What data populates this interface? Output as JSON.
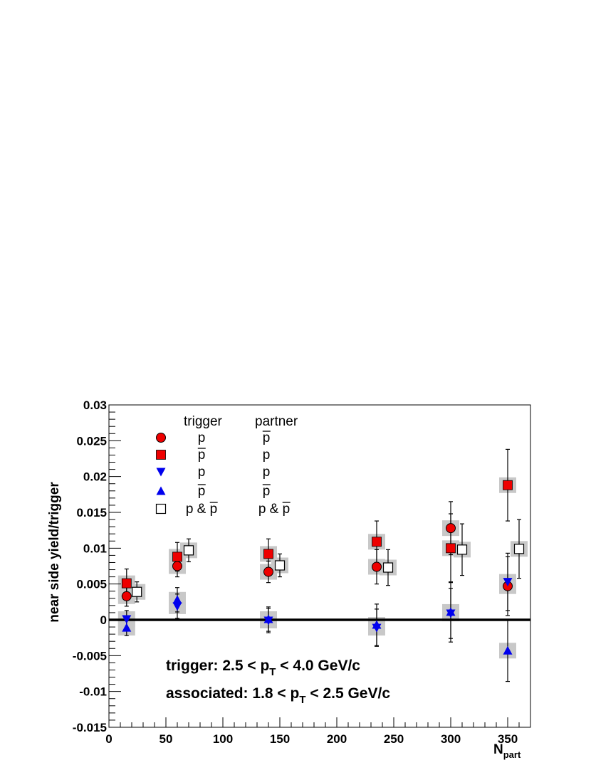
{
  "chart_data": {
    "type": "scatter",
    "xlabel_main": "N",
    "xlabel_sub": "part",
    "ylabel": "near side yield/trigger",
    "xlim": [
      0,
      370
    ],
    "ylim": [
      -0.015,
      0.03
    ],
    "x_ticks": [
      "0",
      "50",
      "100",
      "150",
      "200",
      "250",
      "300",
      "350"
    ],
    "x_tick_values": [
      0,
      50,
      100,
      150,
      200,
      250,
      300,
      350
    ],
    "y_ticks": [
      "-0.015",
      "-0.01",
      "-0.005",
      "0",
      "0.005",
      "0.01",
      "0.015",
      "0.02",
      "0.025",
      "0.03"
    ],
    "y_tick_values": [
      -0.015,
      -0.01,
      -0.005,
      0,
      0.005,
      0.01,
      0.015,
      0.02,
      0.025,
      0.03
    ],
    "grid": false,
    "legend_position": "top-left",
    "legend_headers": {
      "trigger": "trigger",
      "partner": "partner"
    },
    "series": [
      {
        "marker": "circle",
        "color": "#ee0000",
        "legend_trigger": "p",
        "trigger_bar": false,
        "legend_partner": "p",
        "partner_bar": true,
        "x": [
          15.5,
          60,
          140,
          235,
          300,
          350
        ],
        "y": [
          0.0033,
          0.0075,
          0.0067,
          0.0074,
          0.0128,
          0.0047
        ],
        "err": [
          0.0014,
          0.0015,
          0.0015,
          0.0024,
          0.0037,
          0.0041
        ]
      },
      {
        "marker": "square",
        "color": "#ee0000",
        "legend_trigger": "p",
        "trigger_bar": true,
        "legend_partner": "p",
        "partner_bar": false,
        "x": [
          15.5,
          60,
          140,
          235,
          300,
          350
        ],
        "y": [
          0.0051,
          0.0088,
          0.0092,
          0.0109,
          0.01,
          0.0188
        ],
        "err": [
          0.002,
          0.002,
          0.0021,
          0.0029,
          0.0048,
          0.005
        ]
      },
      {
        "marker": "triangle-down",
        "color": "#0000ee",
        "legend_trigger": "p",
        "trigger_bar": false,
        "legend_partner": "p",
        "partner_bar": false,
        "x": [
          15.5,
          60,
          140,
          235,
          300,
          350
        ],
        "y": [
          0.0001,
          0.0019,
          -0.0001,
          -0.0011,
          0.0009,
          0.0053
        ],
        "err": [
          0.0012,
          0.0017,
          0.0017,
          0.0026,
          0.0035,
          0.004
        ]
      },
      {
        "marker": "triangle-up",
        "color": "#0000ee",
        "legend_trigger": "p",
        "trigger_bar": true,
        "legend_partner": "p",
        "partner_bar": true,
        "x": [
          15.5,
          60,
          140,
          235,
          300,
          350
        ],
        "y": [
          -0.0011,
          0.0028,
          0.0001,
          -0.0007,
          0.0011,
          -0.0043
        ],
        "err": [
          0.0011,
          0.0017,
          0.0017,
          0.0029,
          0.0042,
          0.0043
        ]
      },
      {
        "marker": "open-square",
        "color": "#000000",
        "legend_trigger": "p & p",
        "trigger_bar": true,
        "legend_partner": "p & p",
        "partner_bar": true,
        "x": [
          24.5,
          70,
          150,
          245,
          310,
          360
        ],
        "y": [
          0.0039,
          0.0097,
          0.0076,
          0.0073,
          0.0098,
          0.0099
        ],
        "err": [
          0.0014,
          0.0016,
          0.0016,
          0.0025,
          0.0036,
          0.0041
        ]
      }
    ],
    "annotations": [
      {
        "prefix": "trigger: 2.5 < p",
        "sub": "T",
        "suffix": " < 4.0 GeV/c"
      },
      {
        "prefix": "associated: 1.8 < p",
        "sub": "T",
        "suffix": " < 2.5 GeV/c"
      }
    ]
  }
}
